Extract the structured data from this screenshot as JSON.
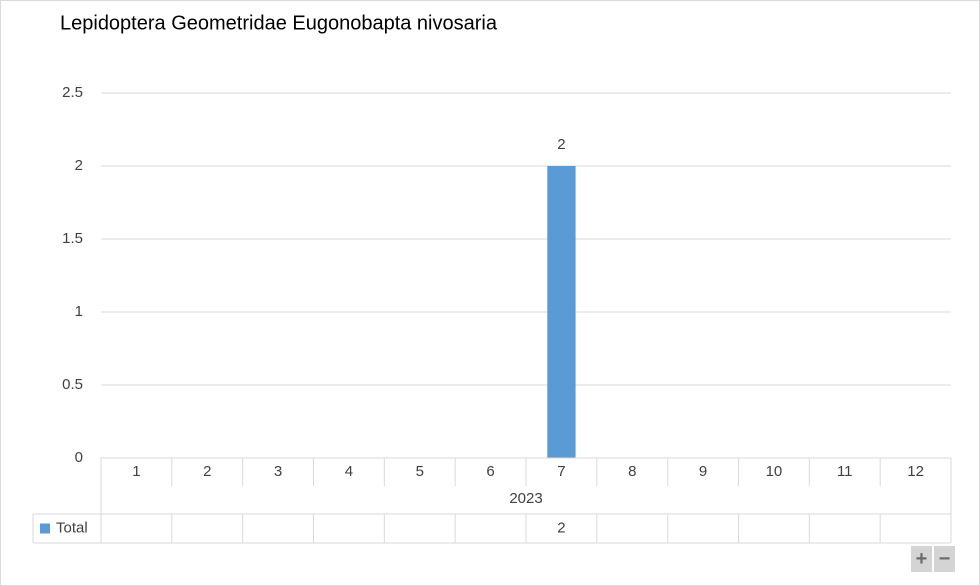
{
  "chart_data": {
    "type": "bar",
    "title": "Lepidoptera Geometridae Eugonobapta nivosaria",
    "categories": [
      "1",
      "2",
      "3",
      "4",
      "5",
      "6",
      "7",
      "8",
      "9",
      "10",
      "11",
      "12"
    ],
    "category_group": "2023",
    "series": [
      {
        "name": "Total",
        "color": "#5b9bd5",
        "values": [
          null,
          null,
          null,
          null,
          null,
          null,
          2,
          null,
          null,
          null,
          null,
          null
        ]
      }
    ],
    "ylim": [
      0,
      2.5
    ],
    "yticks": [
      0,
      0.5,
      1,
      1.5,
      2,
      2.5
    ],
    "grid": true,
    "data_labels": true,
    "data_table": true
  }
}
